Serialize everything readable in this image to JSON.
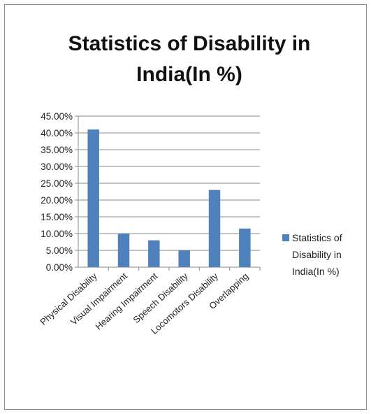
{
  "chart_data": {
    "type": "bar",
    "title_lines": [
      "Statistics of Disability in",
      "India(In %)"
    ],
    "categories": [
      "Physical Disability",
      "Visual Impairment",
      "Hearing Impairment",
      "Speech Disability",
      "Locomotors Disability",
      "Overlapping"
    ],
    "series": [
      {
        "name": "Statistics of Disability in India(In %)",
        "values": [
          0.41,
          0.1,
          0.08,
          0.05,
          0.23,
          0.115
        ],
        "color": "#4f81bd"
      }
    ],
    "yticks": [
      "0.00%",
      "5.00%",
      "10.00%",
      "15.00%",
      "20.00%",
      "25.00%",
      "30.00%",
      "35.00%",
      "40.00%",
      "45.00%"
    ],
    "ylim": [
      0,
      0.45
    ],
    "grid": true,
    "legend": {
      "position": "right",
      "lines": [
        "Statistics of",
        "Disability in",
        "India(In %)"
      ]
    }
  }
}
